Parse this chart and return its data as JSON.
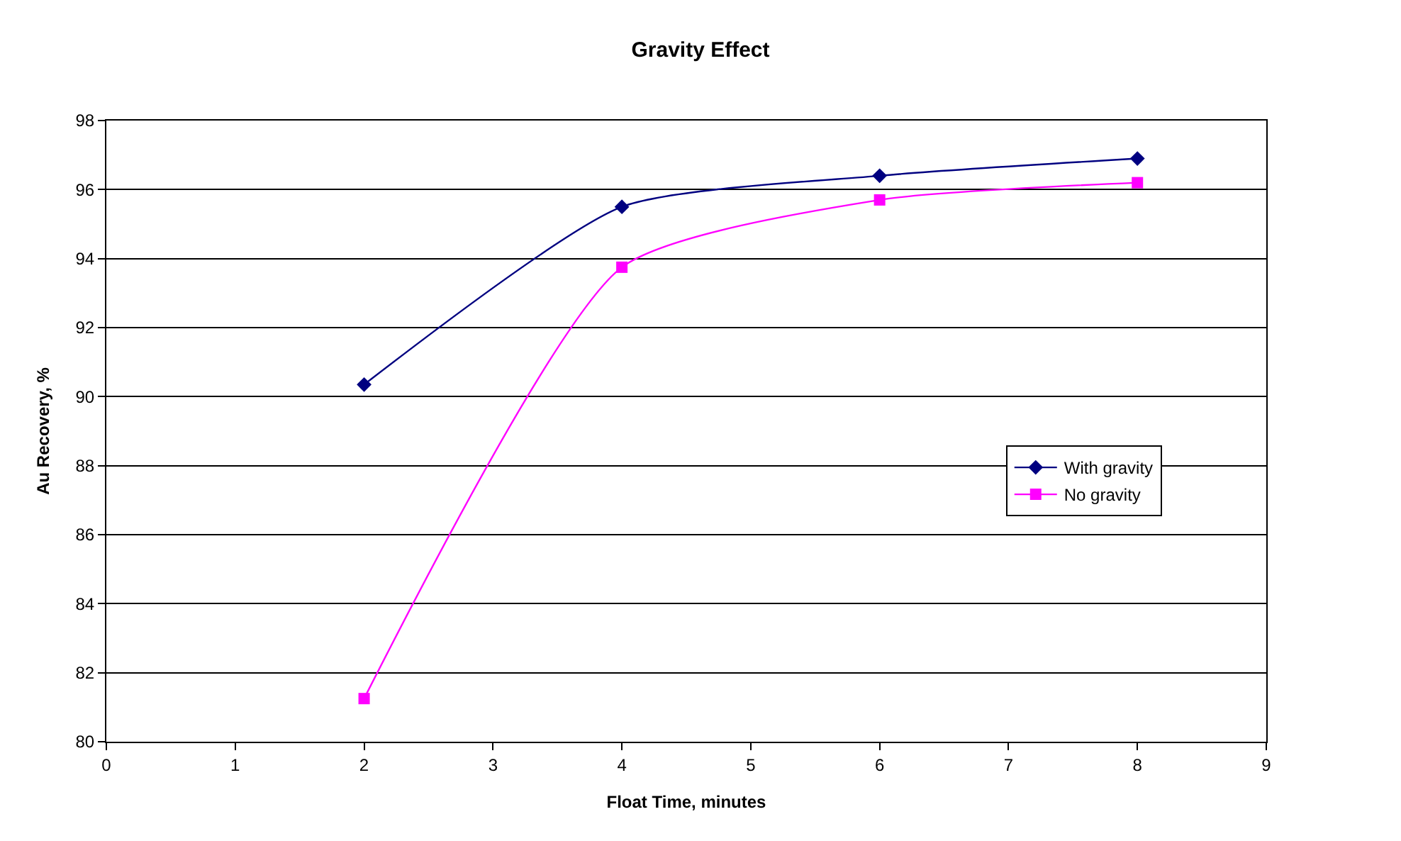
{
  "chart_data": {
    "type": "line",
    "title": "Gravity Effect",
    "xlabel": "Float Time, minutes",
    "ylabel": "Au Recovery, %",
    "x": [
      2,
      4,
      6,
      8
    ],
    "series": [
      {
        "name": "With gravity",
        "color": "#000080",
        "marker": "diamond",
        "values": [
          90.35,
          95.5,
          96.4,
          96.9
        ]
      },
      {
        "name": "No gravity",
        "color": "#ff00ff",
        "marker": "square",
        "values": [
          81.25,
          93.75,
          95.7,
          96.2
        ]
      }
    ],
    "xlim": [
      0,
      9
    ],
    "xticks": [
      0,
      1,
      2,
      3,
      4,
      5,
      6,
      7,
      8,
      9
    ],
    "ylim": [
      80,
      98
    ],
    "yticks": [
      80,
      82,
      84,
      86,
      88,
      90,
      92,
      94,
      96,
      98
    ],
    "grid": "y",
    "legend": "right",
    "line_style": "solid"
  }
}
